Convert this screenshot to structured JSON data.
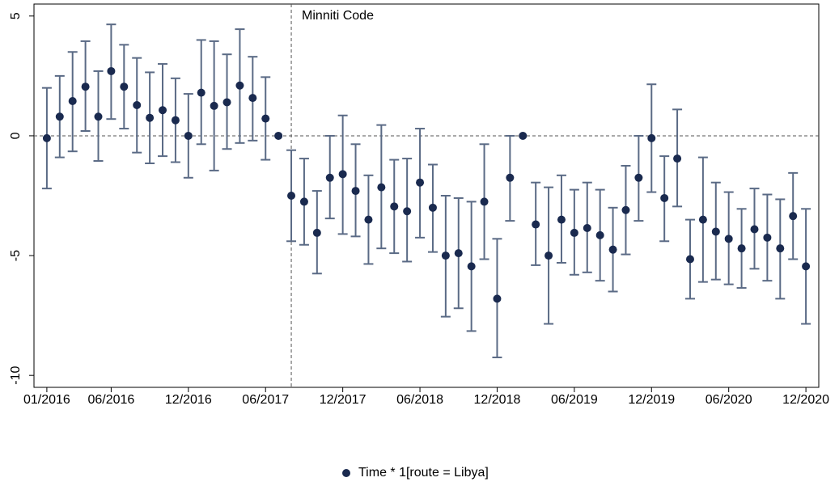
{
  "chart_data": {
    "type": "errorbar",
    "x": [
      0,
      1,
      2,
      3,
      4,
      5,
      6,
      7,
      8,
      9,
      10,
      11,
      12,
      13,
      14,
      15,
      16,
      17,
      18,
      19,
      20,
      21,
      22,
      23,
      24,
      25,
      26,
      27,
      28,
      29,
      30,
      31,
      32,
      33,
      34,
      35,
      36,
      37,
      38,
      39,
      40,
      41,
      42,
      43,
      44,
      45,
      46,
      47,
      48,
      49,
      50,
      51,
      52,
      53,
      54,
      55,
      56,
      57,
      58,
      59
    ],
    "series": [
      {
        "name": "Time * 1[route = Libya]",
        "color": "#1a2a4f",
        "error_color": "#5a6a85",
        "values": [
          -0.1,
          0.8,
          1.45,
          2.05,
          0.8,
          2.7,
          2.05,
          1.28,
          0.75,
          1.07,
          0.65,
          0,
          1.8,
          1.25,
          1.4,
          2.1,
          1.58,
          0.72,
          0,
          -2.5,
          -2.75,
          -4.05,
          -1.75,
          -1.6,
          -2.3,
          -3.5,
          -2.15,
          -2.95,
          -3.15,
          -1.95,
          -3.0,
          -5.0,
          -4.9,
          -5.45,
          -2.75,
          -6.8,
          -1.75,
          0,
          -3.7,
          -5.0,
          -3.5,
          -4.05,
          -3.85,
          -4.15,
          -4.75,
          -3.1,
          -1.75,
          -0.1,
          -2.6,
          -0.95,
          -5.15,
          -3.5,
          -4.0,
          -4.3,
          -4.7,
          -3.9,
          -4.25,
          -4.7,
          -3.35,
          -5.45
        ],
        "lower": [
          -2.2,
          -0.9,
          -0.65,
          0.2,
          -1.05,
          0.7,
          0.3,
          -0.7,
          -1.15,
          -0.85,
          -1.1,
          -1.75,
          -0.35,
          -1.45,
          -0.55,
          -0.3,
          -0.2,
          -1.0,
          null,
          -4.4,
          -4.55,
          -5.75,
          -3.45,
          -4.1,
          -4.2,
          -5.35,
          -4.7,
          -4.9,
          -5.25,
          -4.25,
          -4.85,
          -7.55,
          -7.2,
          -8.15,
          -5.15,
          -9.25,
          -3.55,
          null,
          -5.4,
          -7.85,
          -5.3,
          -5.8,
          -5.7,
          -6.05,
          -6.5,
          -4.95,
          -3.55,
          -2.35,
          -4.4,
          -2.95,
          -6.8,
          -6.1,
          -6.0,
          -6.2,
          -6.35,
          -5.55,
          -6.05,
          -6.8,
          -5.15,
          -7.85
        ],
        "upper": [
          2.0,
          2.5,
          3.5,
          3.95,
          2.7,
          4.65,
          3.8,
          3.25,
          2.65,
          3.0,
          2.4,
          1.75,
          4.0,
          3.95,
          3.4,
          4.45,
          3.3,
          2.45,
          null,
          -0.6,
          -0.95,
          -2.3,
          0,
          0.85,
          -0.35,
          -1.65,
          0.45,
          -1.0,
          -0.95,
          0.3,
          -1.2,
          -2.5,
          -2.6,
          -2.75,
          -0.35,
          -4.3,
          0,
          null,
          -1.95,
          -2.15,
          -1.65,
          -2.25,
          -1.95,
          -2.25,
          -3.0,
          -1.25,
          0,
          2.15,
          -0.85,
          1.1,
          -3.5,
          -0.9,
          -1.95,
          -2.35,
          -3.05,
          -2.2,
          -2.45,
          -2.65,
          -1.55,
          -3.05
        ]
      }
    ],
    "xlim": [
      -1,
      60
    ],
    "xticks": [
      {
        "value": 0,
        "label": "01/2016"
      },
      {
        "value": 5,
        "label": "06/2016"
      },
      {
        "value": 11,
        "label": "12/2016"
      },
      {
        "value": 17,
        "label": "06/2017"
      },
      {
        "value": 23,
        "label": "12/2017"
      },
      {
        "value": 29,
        "label": "06/2018"
      },
      {
        "value": 35,
        "label": "12/2018"
      },
      {
        "value": 41,
        "label": "06/2019"
      },
      {
        "value": 47,
        "label": "12/2019"
      },
      {
        "value": 53,
        "label": "06/2020"
      },
      {
        "value": 59,
        "label": "12/2020"
      }
    ],
    "ylim": [
      -10.5,
      5.5
    ],
    "yticks": [
      5,
      0,
      -5,
      -10
    ],
    "hline": 0,
    "annotation": {
      "text": "Minniti Code",
      "x": 19
    },
    "legend": "bottom"
  }
}
